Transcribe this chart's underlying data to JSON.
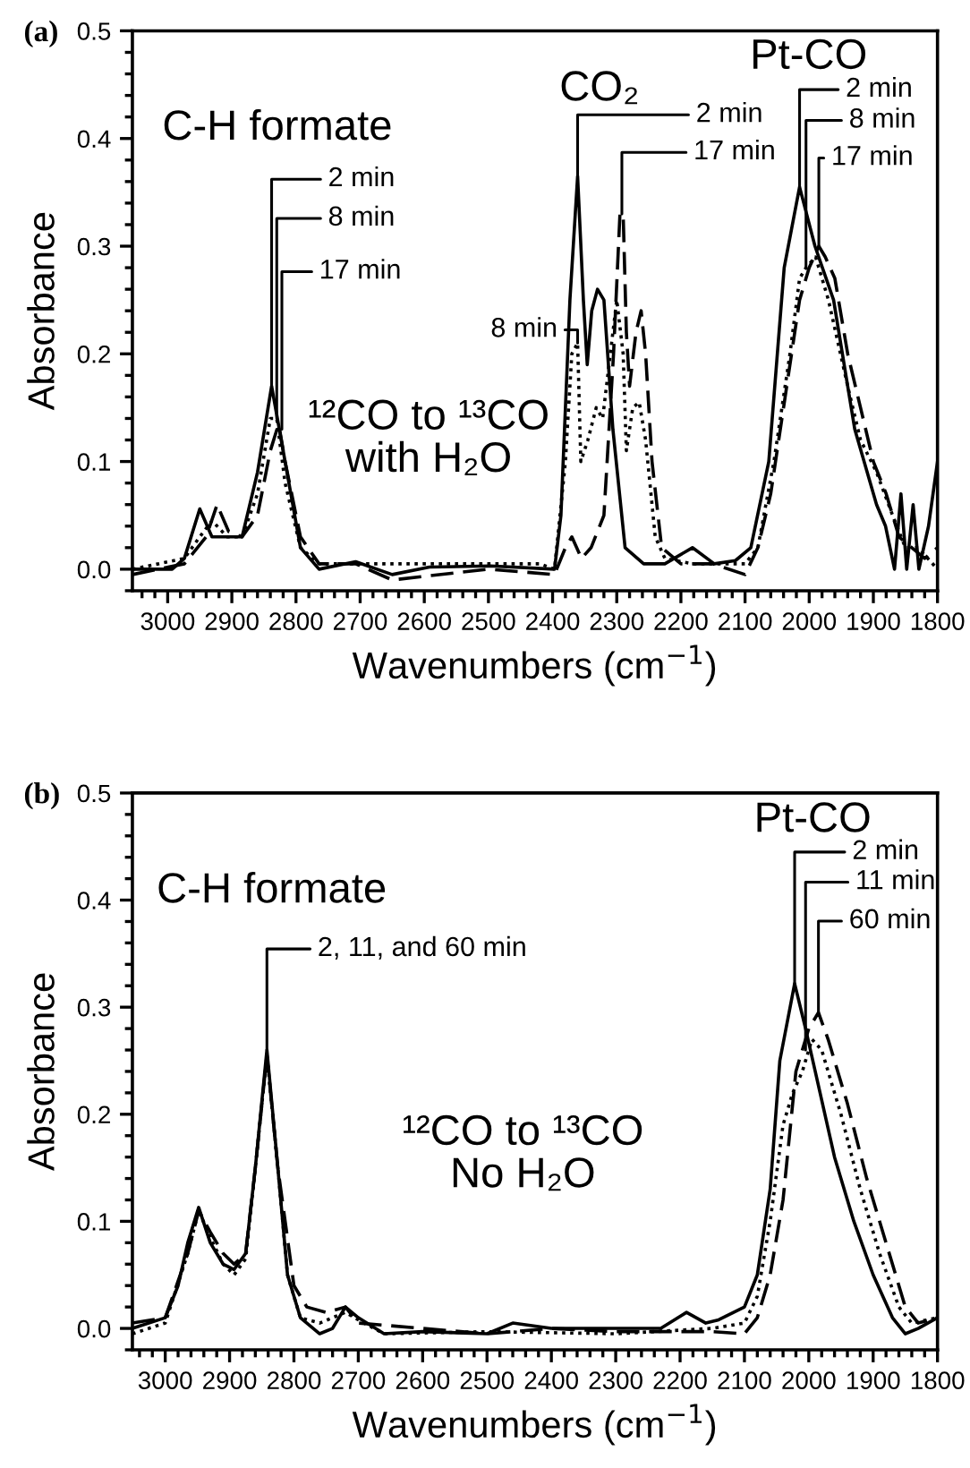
{
  "chart_data": [
    {
      "type": "line",
      "title": "(a)",
      "xlabel": "Wavenumbers (cm$^{−1}$)",
      "ylabel": "Absorbance",
      "xlim": [
        3055,
        1800
      ],
      "xticks": [
        3000,
        2900,
        2800,
        2700,
        2600,
        2500,
        2400,
        2300,
        2200,
        2100,
        2000,
        1900,
        1800
      ],
      "ylim": [
        -0.02,
        0.5
      ],
      "yticks": [
        {
          "value": 0,
          "label": "0.0"
        },
        0.1,
        0.2,
        0.3,
        0.4,
        0.5
      ],
      "grid": false,
      "legend": false,
      "series": [
        {
          "color": "#000000",
          "line_style": "solid",
          "x": [
            3055,
            2993,
            2974,
            2950,
            2931,
            2907,
            2884,
            2860,
            2838,
            2817,
            2793,
            2764,
            2707,
            2650,
            2592,
            2497,
            2397,
            2387,
            2373,
            2361,
            2352,
            2346,
            2339,
            2330,
            2320,
            2306,
            2287,
            2258,
            2225,
            2182,
            2148,
            2115,
            2091,
            2063,
            2039,
            2015,
            1991,
            1962,
            1929,
            1895,
            1881,
            1867,
            1857,
            1848,
            1838,
            1829,
            1814,
            1800
          ],
          "values": [
            0.0,
            0.0,
            0.01,
            0.056,
            0.03,
            0.03,
            0.03,
            0.09,
            0.17,
            0.1,
            0.02,
            0.0,
            0.007,
            -0.005,
            0.002,
            0.003,
            0.0,
            0.05,
            0.25,
            0.365,
            0.25,
            0.19,
            0.24,
            0.26,
            0.25,
            0.13,
            0.02,
            0.005,
            0.005,
            0.02,
            0.005,
            0.008,
            0.02,
            0.1,
            0.28,
            0.355,
            0.3,
            0.25,
            0.13,
            0.06,
            0.04,
            0.0,
            0.07,
            0.0,
            0.06,
            0.0,
            0.04,
            0.1
          ]
        },
        {
          "color": "#000000",
          "line_style": "dotted",
          "x": [
            3055,
            2974,
            2950,
            2931,
            2907,
            2884,
            2860,
            2840,
            2830,
            2817,
            2793,
            2764,
            2707,
            2600,
            2497,
            2420,
            2397,
            2380,
            2370,
            2361,
            2356,
            2345,
            2332,
            2322,
            2310,
            2300,
            2290,
            2285,
            2275,
            2265,
            2255,
            2240,
            2225,
            2182,
            2100,
            2080,
            2055,
            2030,
            2015,
            2005,
            1990,
            1970,
            1940,
            1920,
            1895,
            1870,
            1850,
            1830,
            1800
          ],
          "values": [
            0.0,
            0.01,
            0.03,
            0.045,
            0.03,
            0.03,
            0.07,
            0.14,
            0.14,
            0.08,
            0.02,
            0.005,
            0.005,
            0.005,
            0.005,
            0.005,
            0.0,
            0.1,
            0.2,
            0.21,
            0.1,
            0.12,
            0.15,
            0.14,
            0.2,
            0.25,
            0.2,
            0.11,
            0.15,
            0.155,
            0.12,
            0.03,
            0.01,
            0.005,
            0.005,
            0.02,
            0.1,
            0.2,
            0.27,
            0.28,
            0.29,
            0.25,
            0.17,
            0.12,
            0.09,
            0.05,
            0.02,
            0.02,
            0.0
          ]
        },
        {
          "color": "#000000",
          "line_style": "dashed",
          "x": [
            3055,
            2974,
            2940,
            2923,
            2905,
            2884,
            2860,
            2840,
            2827,
            2817,
            2793,
            2764,
            2707,
            2650,
            2500,
            2397,
            2380,
            2370,
            2355,
            2340,
            2320,
            2305,
            2295,
            2290,
            2285,
            2280,
            2270,
            2262,
            2255,
            2245,
            2230,
            2200,
            2150,
            2100,
            2080,
            2060,
            2040,
            2015,
            2000,
            1985,
            1975,
            1960,
            1940,
            1920,
            1900,
            1880,
            1860,
            1840,
            1820,
            1800
          ],
          "values": [
            -0.005,
            0.005,
            0.03,
            0.06,
            0.035,
            0.03,
            0.05,
            0.11,
            0.135,
            0.1,
            0.03,
            0.005,
            0.005,
            -0.01,
            0.0,
            -0.005,
            0.02,
            0.03,
            0.01,
            0.02,
            0.05,
            0.2,
            0.33,
            0.33,
            0.22,
            0.17,
            0.22,
            0.24,
            0.2,
            0.1,
            0.02,
            0.005,
            0.005,
            -0.005,
            0.02,
            0.07,
            0.15,
            0.25,
            0.28,
            0.3,
            0.29,
            0.27,
            0.2,
            0.15,
            0.1,
            0.07,
            0.03,
            0.02,
            0.01,
            0.02
          ]
        }
      ],
      "annotations": [
        "C-H formate",
        {
          "text": "2 min",
          "x": 2838,
          "y": 0.17
        },
        {
          "text": "8 min",
          "x": 2830,
          "y": 0.14
        },
        {
          "text": "17 min",
          "x": 2822,
          "y": 0.13
        },
        "¹²CO to ¹³CO\nwith H₂O",
        "CO₂",
        {
          "text": "2 min",
          "x": 2361,
          "y": 0.365
        },
        {
          "text": "8 min",
          "x": 2361,
          "y": 0.21
        },
        {
          "text": "17 min",
          "x": 2292,
          "y": 0.33
        },
        "Pt-CO",
        {
          "text": "2 min",
          "x": 2015,
          "y": 0.355
        },
        {
          "text": "8 min",
          "x": 2005,
          "y": 0.28
        },
        {
          "text": "17 min",
          "x": 1985,
          "y": 0.3
        }
      ]
    },
    {
      "type": "line",
      "title": "(b)",
      "xlabel": "Wavenumbers (cm$^{−1}$)",
      "ylabel": "Absorbance",
      "xlim": [
        3051,
        1800
      ],
      "xticks": [
        3000,
        2900,
        2800,
        2700,
        2600,
        2500,
        2400,
        2300,
        2200,
        2100,
        2000,
        1900,
        1800
      ],
      "ylim": [
        -0.02,
        0.5
      ],
      "yticks": [
        {
          "value": 0,
          "label": "0.0"
        },
        0.1,
        0.2,
        0.3,
        0.4,
        0.5
      ],
      "grid": false,
      "legend": false,
      "series": [
        {
          "color": "#000000",
          "line_style": "solid",
          "x": [
            3051,
            3000,
            2980,
            2965,
            2948,
            2930,
            2910,
            2893,
            2875,
            2860,
            2842,
            2825,
            2810,
            2790,
            2760,
            2740,
            2720,
            2700,
            2660,
            2600,
            2500,
            2460,
            2400,
            2300,
            2230,
            2190,
            2160,
            2140,
            2100,
            2080,
            2060,
            2045,
            2022,
            2005,
            1990,
            1960,
            1930,
            1900,
            1870,
            1850,
            1830,
            1800
          ],
          "values": [
            0.0,
            0.01,
            0.04,
            0.08,
            0.113,
            0.08,
            0.06,
            0.055,
            0.07,
            0.15,
            0.26,
            0.15,
            0.05,
            0.01,
            -0.005,
            0.0,
            0.02,
            0.01,
            -0.005,
            -0.003,
            -0.005,
            0.005,
            0.0,
            0.0,
            0.0,
            0.015,
            0.005,
            0.008,
            0.02,
            0.05,
            0.13,
            0.25,
            0.322,
            0.28,
            0.24,
            0.16,
            0.1,
            0.05,
            0.01,
            -0.005,
            0.0,
            0.01
          ]
        },
        {
          "color": "#000000",
          "line_style": "dotted",
          "x": [
            3051,
            3000,
            2965,
            2948,
            2930,
            2910,
            2893,
            2875,
            2860,
            2842,
            2825,
            2810,
            2790,
            2760,
            2720,
            2700,
            2660,
            2500,
            2300,
            2150,
            2100,
            2080,
            2060,
            2040,
            2025,
            2010,
            1995,
            1980,
            1950,
            1920,
            1890,
            1860,
            1840,
            1800
          ],
          "values": [
            -0.005,
            0.005,
            0.07,
            0.11,
            0.085,
            0.06,
            0.05,
            0.065,
            0.15,
            0.255,
            0.15,
            0.05,
            0.01,
            0.005,
            0.015,
            0.008,
            -0.005,
            -0.003,
            -0.005,
            0.0,
            0.005,
            0.03,
            0.1,
            0.19,
            0.22,
            0.24,
            0.27,
            0.26,
            0.2,
            0.13,
            0.07,
            0.02,
            0.005,
            0.01
          ]
        },
        {
          "color": "#000000",
          "line_style": "dashed",
          "x": [
            3051,
            3000,
            2965,
            2948,
            2930,
            2910,
            2893,
            2875,
            2860,
            2842,
            2825,
            2800,
            2780,
            2750,
            2720,
            2700,
            2600,
            2500,
            2400,
            2300,
            2150,
            2100,
            2080,
            2060,
            2040,
            2020,
            2000,
            1985,
            1970,
            1940,
            1910,
            1880,
            1850,
            1830,
            1800
          ],
          "values": [
            0.005,
            0.01,
            0.07,
            0.11,
            0.09,
            0.07,
            0.06,
            0.07,
            0.15,
            0.255,
            0.15,
            0.04,
            0.02,
            0.015,
            0.02,
            0.005,
            0.0,
            -0.005,
            0.0,
            -0.003,
            -0.003,
            -0.005,
            0.01,
            0.05,
            0.12,
            0.24,
            0.28,
            0.295,
            0.27,
            0.21,
            0.14,
            0.08,
            0.02,
            0.005,
            0.01
          ]
        }
      ],
      "annotations": [
        "C-H formate",
        {
          "text": "2, 11, and 60 min",
          "x": 2842,
          "y": 0.26
        },
        "¹²CO to ¹³CO\nNo H₂O",
        "Pt-CO",
        {
          "text": "2 min",
          "x": 2022,
          "y": 0.322
        },
        {
          "text": "11 min",
          "x": 2005,
          "y": 0.26
        },
        {
          "text": "60 min",
          "x": 1985,
          "y": 0.295
        }
      ]
    }
  ]
}
